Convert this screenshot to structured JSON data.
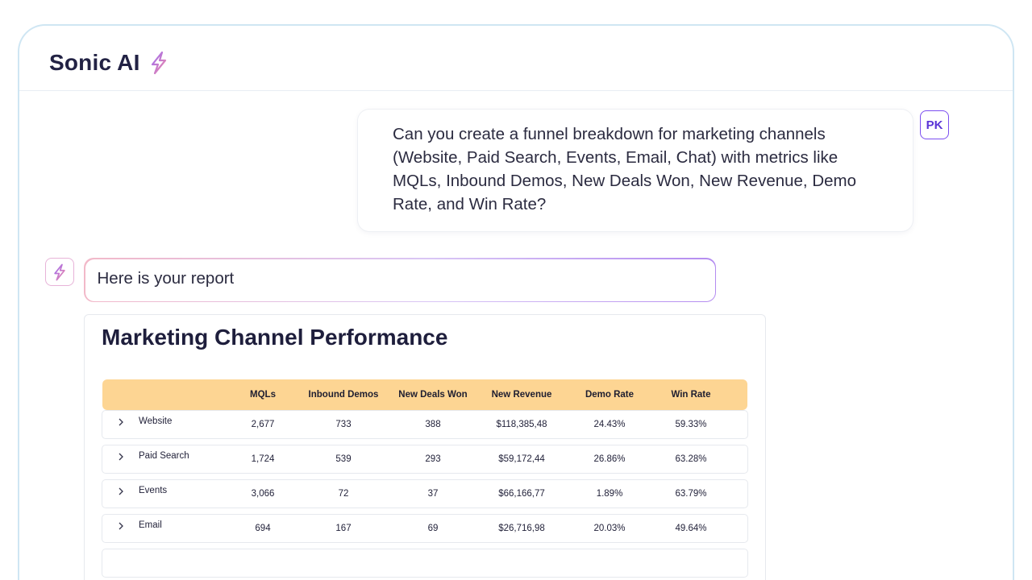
{
  "app": {
    "title": "Sonic AI"
  },
  "user": {
    "initials": "PK",
    "message": "Can you create a funnel breakdown for marketing channels (Website, Paid Search, Events, Email, Chat) with metrics like MQLs, Inbound Demos, New Deals Won, New Revenue, Demo Rate, and Win Rate?"
  },
  "assistant": {
    "reply": "Here is your report"
  },
  "report": {
    "title": "Marketing Channel Performance",
    "columns": [
      "",
      "MQLs",
      "Inbound Demos",
      "New Deals Won",
      "New Revenue",
      "Demo Rate",
      "Win Rate"
    ],
    "rows": [
      {
        "channel": "Website",
        "mqls": "2,677",
        "demos": "733",
        "won": "388",
        "revenue": "$118,385,48",
        "demo_rate": "24.43%",
        "win_rate": "59.33%"
      },
      {
        "channel": "Paid Search",
        "mqls": "1,724",
        "demos": "539",
        "won": "293",
        "revenue": "$59,172,44",
        "demo_rate": "26.86%",
        "win_rate": "63.28%"
      },
      {
        "channel": "Events",
        "mqls": "3,066",
        "demos": "72",
        "won": "37",
        "revenue": "$66,166,77",
        "demo_rate": "1.89%",
        "win_rate": "63.79%"
      },
      {
        "channel": "Email",
        "mqls": "694",
        "demos": "167",
        "won": "69",
        "revenue": "$26,716,98",
        "demo_rate": "20.03%",
        "win_rate": "49.64%"
      }
    ]
  },
  "colors": {
    "brand_text": "#222244",
    "accent_purple": "#7b4ef0",
    "table_header": "#fdd593",
    "frame_border": "#cfe6f3"
  }
}
